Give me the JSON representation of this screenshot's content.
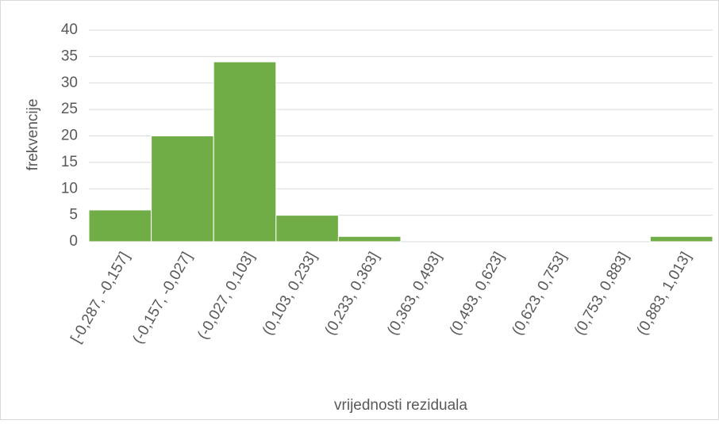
{
  "chart_data": {
    "type": "bar",
    "categories": [
      "[-0,287, -0,157]",
      "(-0,157, -0,027]",
      "(-0,027, 0,103]",
      "(0,103, 0,233]",
      "(0,233, 0,363]",
      "(0,363, 0,493]",
      "(0,493, 0,623]",
      "(0,623, 0,753]",
      "(0,753, 0,883]",
      "(0,883, 1,013]"
    ],
    "values": [
      6,
      20,
      34,
      5,
      1,
      0,
      0,
      0,
      0,
      1
    ],
    "color": "#70ad47",
    "ylim": [
      0,
      40
    ],
    "yticks": [
      0,
      5,
      10,
      15,
      20,
      25,
      30,
      35,
      40
    ],
    "grid": true,
    "x_label": "vrijednosti reziduala",
    "y_label": "frekvencije"
  }
}
